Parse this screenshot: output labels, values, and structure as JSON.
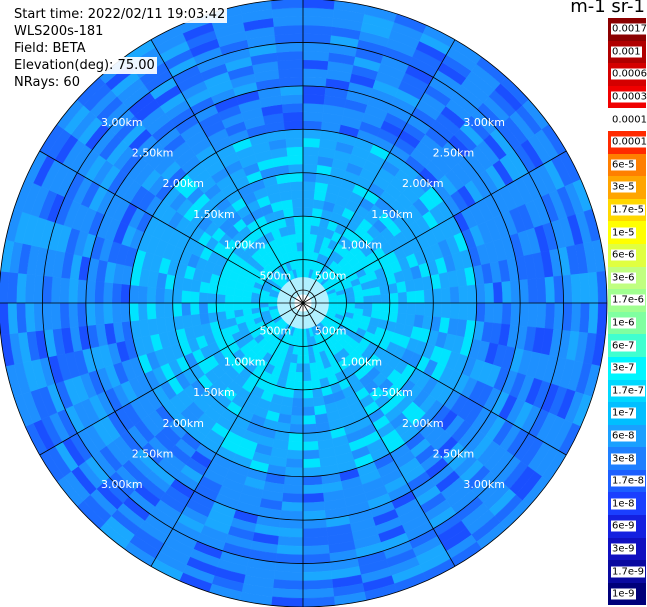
{
  "header": {
    "start_time": "Start time: 2022/02/11 19:03:42",
    "instrument": "WLS200s-181",
    "field": "Field: BETA",
    "elevation": "Elevation(deg): 75.00",
    "nrays": "NRays: 60"
  },
  "colorbar": {
    "unit": "m-1 sr-1",
    "labels": [
      "0.0017",
      "0.001",
      "0.0006",
      "0.0003",
      "0.00017",
      "0.0001",
      "6e-5",
      "3e-5",
      "1.7e-5",
      "1e-5",
      "6e-6",
      "3e-6",
      "1.7e-6",
      "1e-6",
      "6e-7",
      "3e-7",
      "1.7e-7",
      "1e-7",
      "6e-8",
      "3e-8",
      "1.7e-8",
      "1e-8",
      "6e-9",
      "3e-9",
      "1.7e-9",
      "1e-9"
    ],
    "colors": [
      "#8b0000",
      "#b00000",
      "#d40000",
      "#f00000",
      "#ffffff",
      "#ff2a00",
      "#ff7f00",
      "#ffa500",
      "#ffd700",
      "#ffff00",
      "#e0ff40",
      "#c0ff80",
      "#a0ff90",
      "#80ffa0",
      "#40ffd0",
      "#00f5ff",
      "#00d8ff",
      "#00bfff",
      "#1aa0ff",
      "#1e7fff",
      "#1c5fff",
      "#1a3fff",
      "#1420e0",
      "#1010c0",
      "#0a0aa0",
      "#00007a"
    ]
  },
  "range_rings": [
    "500m",
    "1.00km",
    "1.50km",
    "2.00km",
    "2.50km",
    "3.00km"
  ],
  "map": {
    "rays": 60,
    "max_range_km": 3.5,
    "palette": [
      "#00e5ff",
      "#1aa8ff",
      "#1e90ff",
      "#1c6cff",
      "#1a4fff"
    ]
  }
}
